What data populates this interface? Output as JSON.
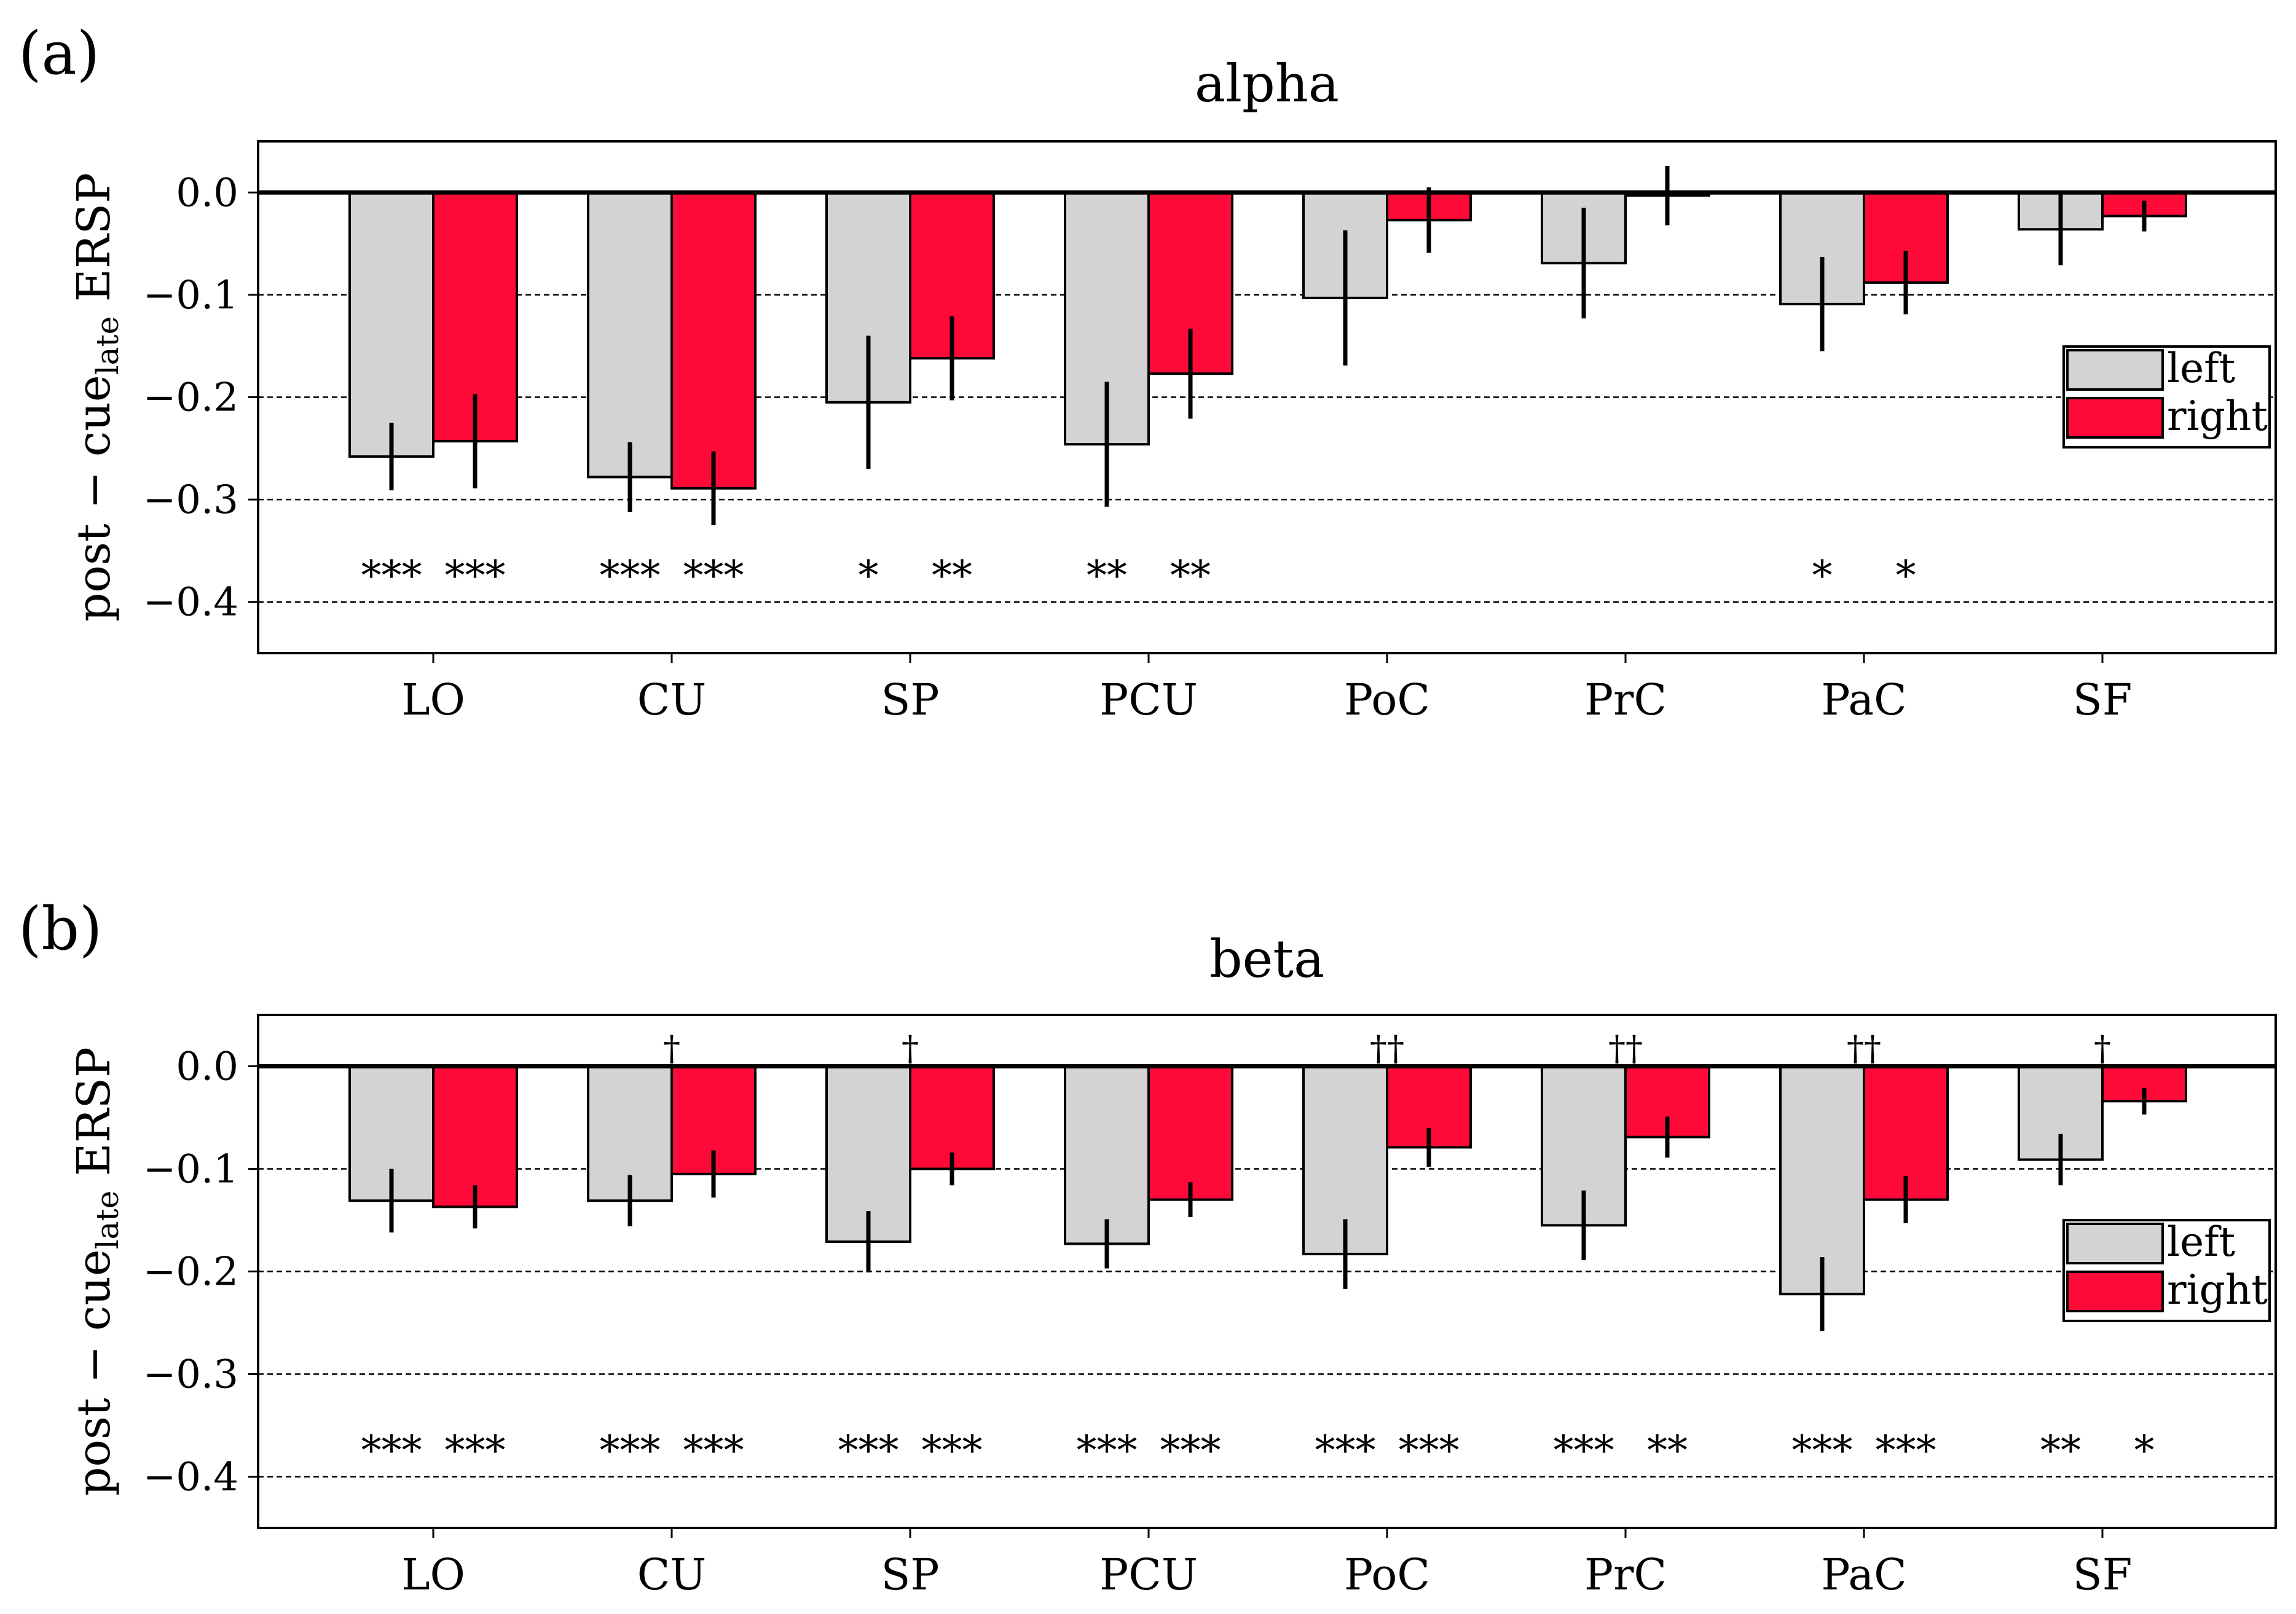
{
  "panel_labels": [
    "(a)",
    "(b)"
  ],
  "chart_data": [
    {
      "type": "bar",
      "title": "alpha",
      "ylabel_main": "post − cue",
      "ylabel_sub": "late",
      "ylabel_tail": " ERSP",
      "categories": [
        "LO",
        "CU",
        "SP",
        "PCU",
        "PoC",
        "PrC",
        "PaC",
        "SF"
      ],
      "series": [
        {
          "name": "left",
          "color": "#d3d3d3",
          "values": [
            -0.258,
            -0.278,
            -0.205,
            -0.246,
            -0.103,
            -0.069,
            -0.109,
            -0.036
          ],
          "errors": [
            0.033,
            0.034,
            0.065,
            0.061,
            0.066,
            0.054,
            0.046,
            0.035
          ]
        },
        {
          "name": "right",
          "color": "#ff0a38",
          "values": [
            -0.243,
            -0.289,
            -0.162,
            -0.177,
            -0.027,
            -0.003,
            -0.088,
            -0.023
          ],
          "errors": [
            0.046,
            0.036,
            0.041,
            0.044,
            0.032,
            0.029,
            0.031,
            0.015
          ]
        }
      ],
      "significance": [
        [
          "***",
          "***"
        ],
        [
          "***",
          "***"
        ],
        [
          "*",
          "**"
        ],
        [
          "**",
          "**"
        ],
        [
          "",
          ""
        ],
        [
          "",
          ""
        ],
        [
          "*",
          "*"
        ],
        [
          "",
          ""
        ]
      ],
      "daggers": [
        "",
        "",
        "",
        "",
        "",
        "",
        "",
        ""
      ],
      "yticks": [
        0.0,
        -0.1,
        -0.2,
        -0.3,
        -0.4
      ],
      "ytick_labels": [
        "0.0",
        "−0.1",
        "−0.2",
        "−0.3",
        "−0.4"
      ],
      "ylim": [
        -0.45,
        0.05
      ],
      "legend_loc": "right"
    },
    {
      "type": "bar",
      "title": "beta",
      "ylabel_main": "post − cue",
      "ylabel_sub": "late",
      "ylabel_tail": " ERSP",
      "categories": [
        "LO",
        "CU",
        "SP",
        "PCU",
        "PoC",
        "PrC",
        "PaC",
        "SF"
      ],
      "series": [
        {
          "name": "left",
          "color": "#d3d3d3",
          "values": [
            -0.131,
            -0.131,
            -0.171,
            -0.173,
            -0.183,
            -0.155,
            -0.222,
            -0.091
          ],
          "errors": [
            0.031,
            0.025,
            0.03,
            0.024,
            0.034,
            0.034,
            0.036,
            0.025
          ]
        },
        {
          "name": "right",
          "color": "#ff0a38",
          "values": [
            -0.137,
            -0.105,
            -0.1,
            -0.13,
            -0.079,
            -0.069,
            -0.13,
            -0.034
          ],
          "errors": [
            0.021,
            0.023,
            0.016,
            0.017,
            0.019,
            0.02,
            0.023,
            0.013
          ]
        }
      ],
      "significance": [
        [
          "***",
          "***"
        ],
        [
          "***",
          "***"
        ],
        [
          "***",
          "***"
        ],
        [
          "***",
          "***"
        ],
        [
          "***",
          "***"
        ],
        [
          "***",
          "**"
        ],
        [
          "***",
          "***"
        ],
        [
          "**",
          "*"
        ]
      ],
      "daggers": [
        "",
        "†",
        "†",
        "",
        "††",
        "††",
        "††",
        "†"
      ],
      "yticks": [
        0.0,
        -0.1,
        -0.2,
        -0.3,
        -0.4
      ],
      "ytick_labels": [
        "0.0",
        "−0.1",
        "−0.2",
        "−0.3",
        "−0.4"
      ],
      "ylim": [
        -0.45,
        0.05
      ],
      "legend_loc": "right"
    }
  ]
}
